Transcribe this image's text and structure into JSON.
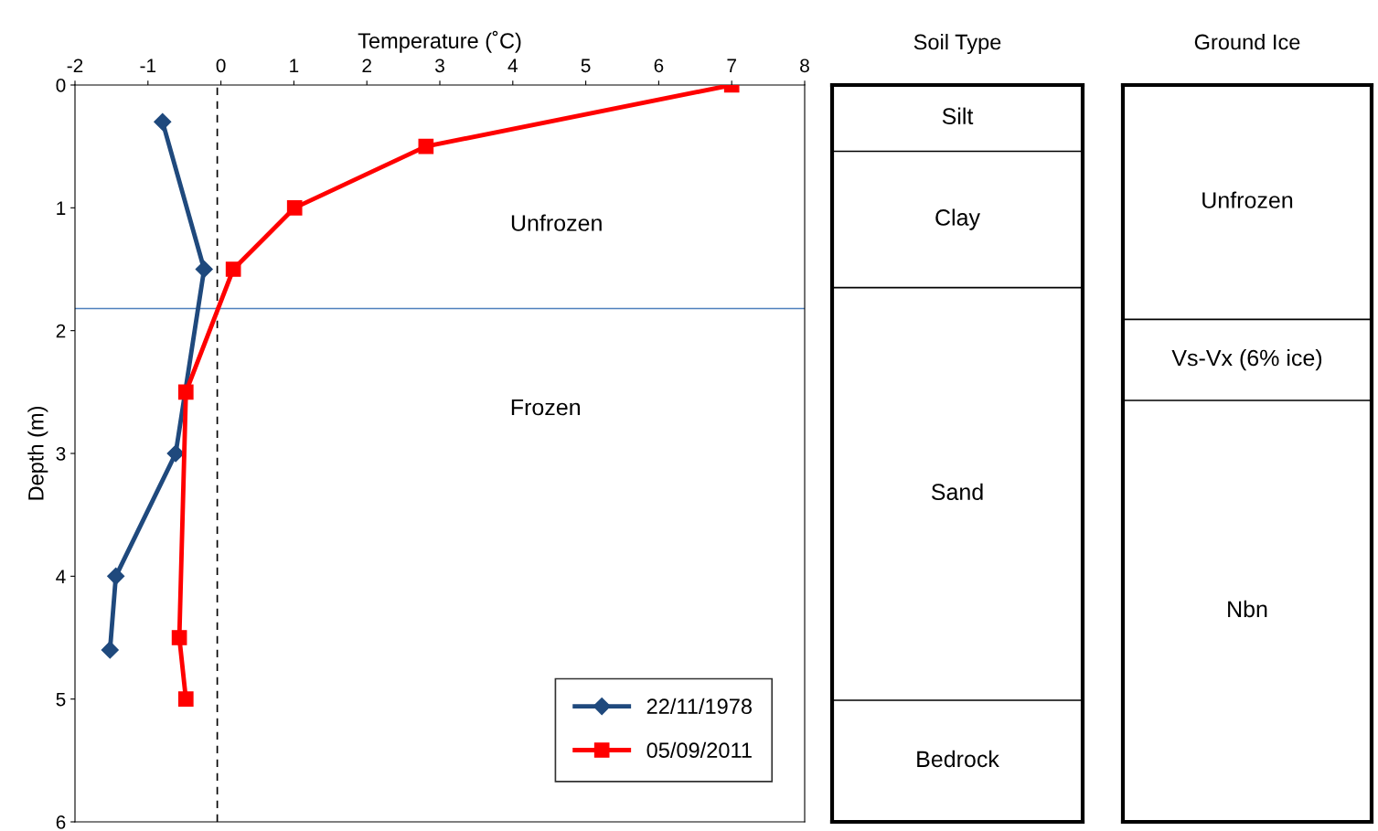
{
  "chart_data": [
    {
      "type": "line",
      "xlabel": "Temperature (˚C)",
      "ylabel": "Depth (m)",
      "xlim": [
        -2,
        8
      ],
      "xticks": [
        -2,
        -1,
        0,
        1,
        2,
        3,
        4,
        5,
        6,
        7,
        8
      ],
      "ylim": [
        6,
        0
      ],
      "yticks": [
        0,
        1,
        2,
        3,
        4,
        5,
        6
      ],
      "grid": false,
      "legend": "bottom right",
      "line_style": "solid",
      "series": [
        {
          "name": "22/11/1978",
          "color": "#1f497d",
          "marker": "diamond",
          "x": [
            -0.8,
            -0.23,
            -0.62,
            -1.44,
            -1.52
          ],
          "values": [
            0.3,
            1.5,
            3.0,
            4.0,
            4.6
          ]
        },
        {
          "name": "05/09/2011",
          "color": "#ff0000",
          "marker": "square",
          "x": [
            7.0,
            2.81,
            1.01,
            0.17,
            -0.48,
            -0.57,
            -0.48
          ],
          "values": [
            0,
            0.5,
            1.0,
            1.5,
            2.5,
            4.5,
            5.0
          ]
        }
      ],
      "ref_lines": [
        {
          "axis": "y",
          "value": 1.82,
          "color": "#4f81bd",
          "line_style": "solid"
        },
        {
          "axis": "x",
          "value": -0.05,
          "color": "#000000",
          "line_style": "dashed"
        }
      ],
      "annotations": [
        "Unfrozen",
        "Frozen"
      ]
    },
    {
      "type": "other",
      "title": "Soil Type",
      "annotations": [
        "Silt",
        "Clay",
        "Sand",
        "Bedrock"
      ]
    },
    {
      "type": "other",
      "title": "Ground Ice",
      "annotations": [
        "Unfrozen",
        "Vs-Vx (6% ice)",
        "Nbn"
      ]
    }
  ]
}
